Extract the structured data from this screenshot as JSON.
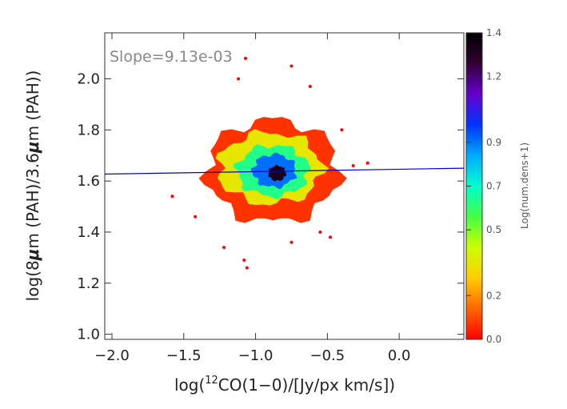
{
  "chart_data": {
    "type": "heatmap",
    "annotation": "Slope=9.13e-03",
    "x_tick_labels": [
      "−2.0",
      "−1.5",
      "−1.0",
      "−0.5",
      "0.0"
    ],
    "x_ticks": [
      -2.0,
      -1.5,
      -1.0,
      -0.5,
      0.0
    ],
    "y_tick_labels": [
      "1.0",
      "1.2",
      "1.4",
      "1.6",
      "1.8",
      "2.0"
    ],
    "y_ticks": [
      1.0,
      1.2,
      1.4,
      1.6,
      1.8,
      2.0
    ],
    "xlim": [
      -2.05,
      0.45
    ],
    "ylim": [
      0.98,
      2.18
    ],
    "xlabel": {
      "pre": "log(",
      "sup": "12",
      "post": "CO(1−0)/[Jy/px km/s])"
    },
    "ylabel": {
      "pre": "log(8",
      "mu": "μ",
      "mid": "m (PAH)/3.6",
      "mu2": "μ",
      "post": "m (PAH))"
    },
    "colorbar": {
      "label": "Log(num.dens+1)",
      "tick_labels": [
        "0.0",
        "0.2",
        "0.5",
        "0.7",
        "0.9",
        "1.2",
        "1.4"
      ],
      "ticks": [
        0.0,
        0.2,
        0.5,
        0.7,
        0.9,
        1.2,
        1.4
      ],
      "range": [
        0.0,
        1.4
      ],
      "colors": [
        "#ff0000",
        "#ff6600",
        "#ffcc00",
        "#ccff00",
        "#44ff44",
        "#00ffcc",
        "#00aaff",
        "#0033ff",
        "#6600cc",
        "#330033",
        "#000000"
      ]
    },
    "fit_line": {
      "slope": 0.00913,
      "x": [
        -2.05,
        0.45
      ],
      "y": [
        1.627,
        1.65
      ],
      "color": "#0000cc"
    },
    "density_blobs": [
      {
        "cx": -0.88,
        "cy": 1.64,
        "rx": 0.46,
        "ry": 0.2,
        "level": 0.05
      },
      {
        "cx": -0.9,
        "cy": 1.65,
        "rx": 0.36,
        "ry": 0.14,
        "level": 0.25
      },
      {
        "cx": -0.88,
        "cy": 1.64,
        "rx": 0.25,
        "ry": 0.1,
        "level": 0.45
      },
      {
        "cx": -0.87,
        "cy": 1.64,
        "rx": 0.15,
        "ry": 0.065,
        "level": 0.65
      },
      {
        "cx": -0.85,
        "cy": 1.63,
        "rx": 0.06,
        "ry": 0.03,
        "level": 0.95
      }
    ],
    "outliers": [
      {
        "x": -1.07,
        "y": 2.08
      },
      {
        "x": -0.75,
        "y": 2.05
      },
      {
        "x": -1.12,
        "y": 2.0
      },
      {
        "x": -0.62,
        "y": 1.97
      },
      {
        "x": -0.4,
        "y": 1.8
      },
      {
        "x": -1.58,
        "y": 1.54
      },
      {
        "x": -0.32,
        "y": 1.66
      },
      {
        "x": -0.22,
        "y": 1.67
      },
      {
        "x": -0.55,
        "y": 1.4
      },
      {
        "x": -0.75,
        "y": 1.36
      },
      {
        "x": -1.06,
        "y": 1.26
      },
      {
        "x": -1.22,
        "y": 1.34
      },
      {
        "x": -0.48,
        "y": 1.38
      },
      {
        "x": -1.42,
        "y": 1.46
      },
      {
        "x": -1.08,
        "y": 1.29
      }
    ]
  }
}
